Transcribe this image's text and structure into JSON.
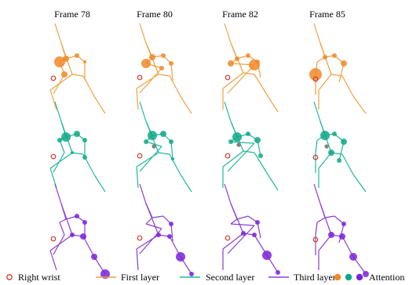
{
  "frames": [
    "Frame 78",
    "Frame 80",
    "Frame 82",
    "Frame 85"
  ],
  "legend": {
    "right_wrist": "Right wrist",
    "first_layer": "First layer",
    "second_layer": "Second layer",
    "third_layer": "Third layer",
    "attention": "Attention"
  },
  "colors": {
    "first_layer": "#f0a040",
    "second_layer": "#1fb89a",
    "third_layer": "#8a3ed6",
    "attention_first": "#f08a2a",
    "attention_second": "#0fa886",
    "attention_third": "#7a22d8",
    "right_wrist": "#d0392c",
    "highlight_gray": "#808080"
  }
}
